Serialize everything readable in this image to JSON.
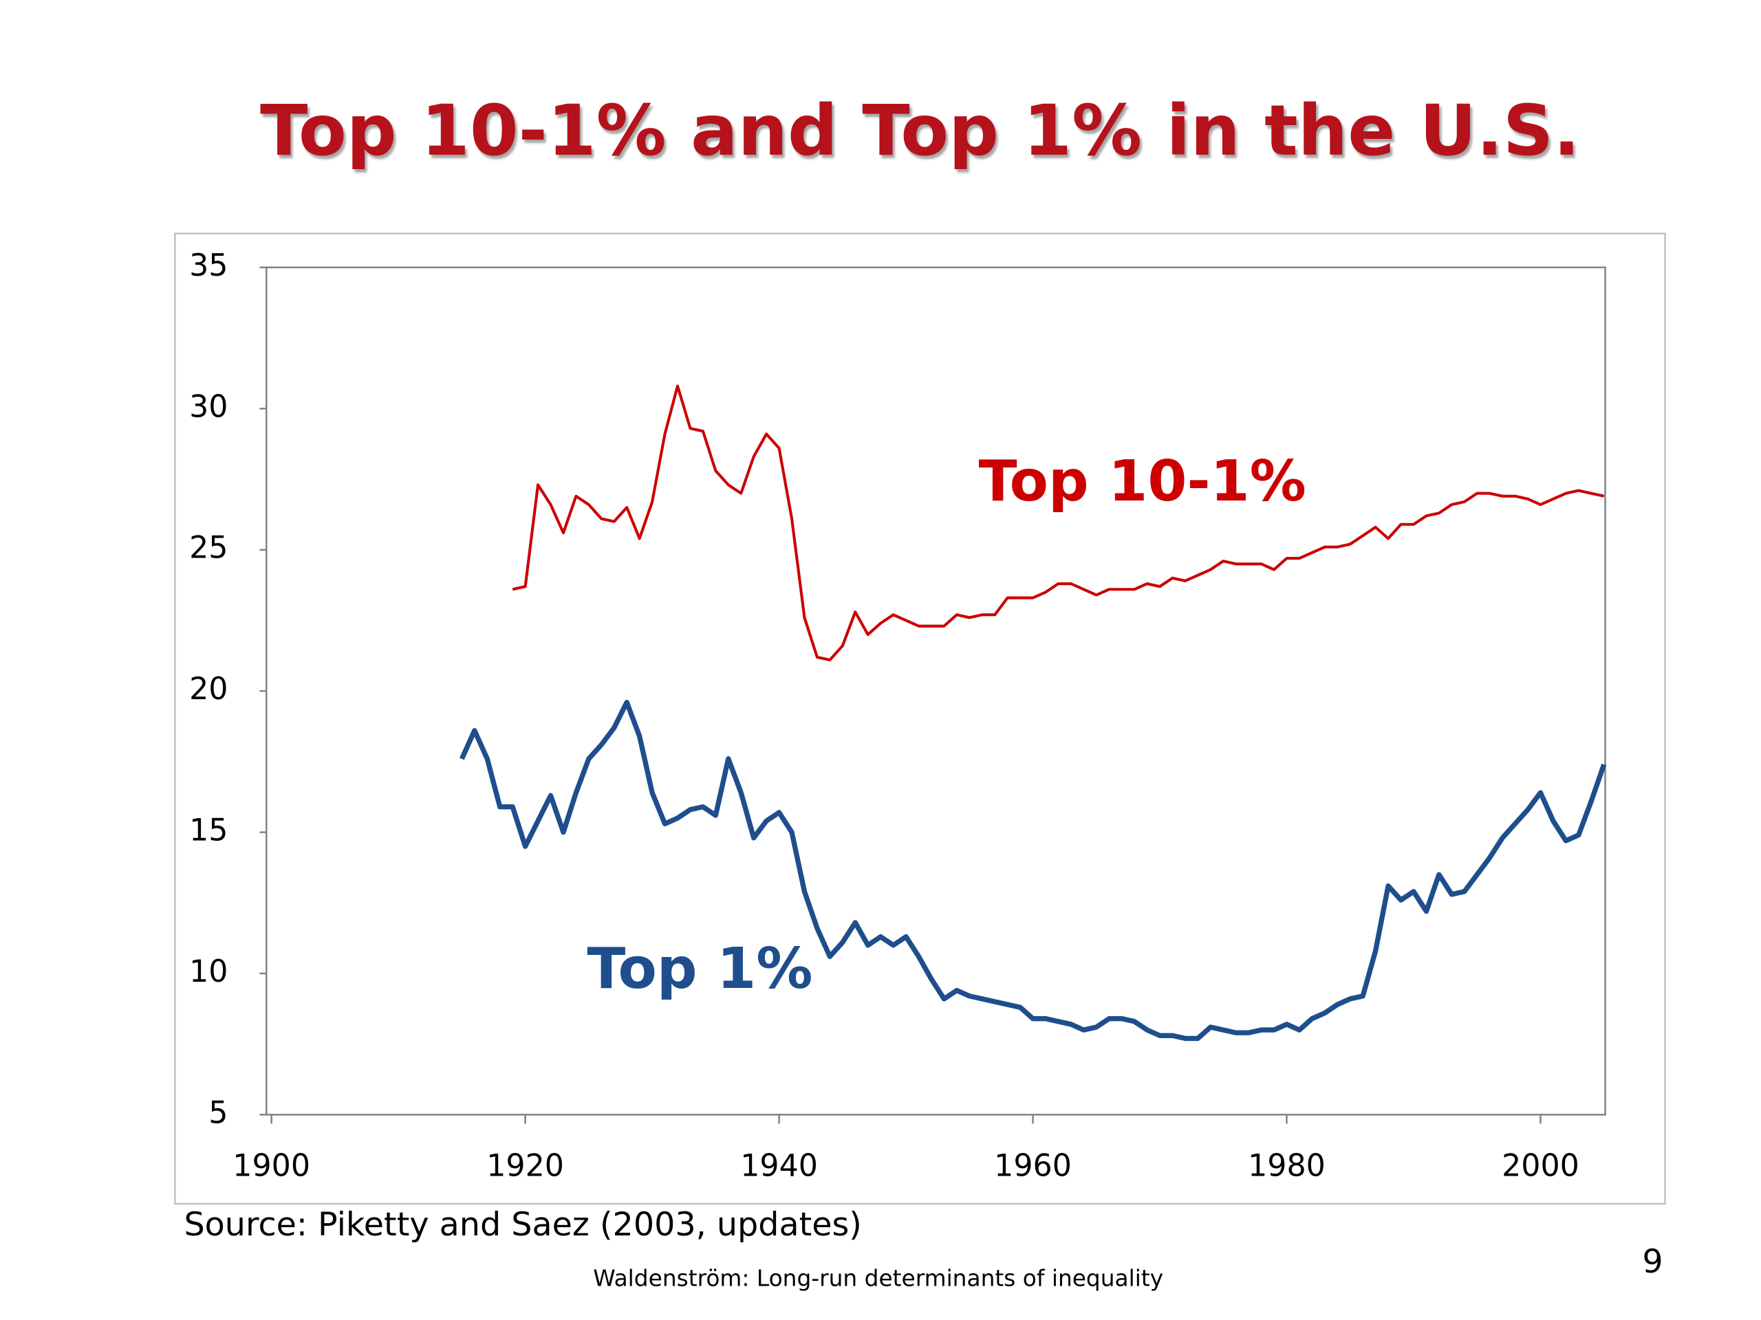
{
  "chart_data": {
    "type": "line",
    "title": "Top 10-1% and Top 1% in the U.S.",
    "source": "Source: Piketty and Saez (2003, updates)",
    "footer": "Waldenström: Long-run determinants of inequality",
    "page_number": "9",
    "x": [
      1915,
      1916,
      1917,
      1918,
      1919,
      1920,
      1921,
      1922,
      1923,
      1924,
      1925,
      1926,
      1927,
      1928,
      1929,
      1930,
      1931,
      1932,
      1933,
      1934,
      1935,
      1936,
      1937,
      1938,
      1939,
      1940,
      1941,
      1942,
      1943,
      1944,
      1945,
      1946,
      1947,
      1948,
      1949,
      1950,
      1951,
      1952,
      1953,
      1954,
      1955,
      1956,
      1957,
      1958,
      1959,
      1960,
      1961,
      1962,
      1963,
      1964,
      1965,
      1966,
      1967,
      1968,
      1969,
      1970,
      1971,
      1972,
      1973,
      1974,
      1975,
      1976,
      1977,
      1978,
      1979,
      1980,
      1981,
      1982,
      1983,
      1984,
      1985,
      1986,
      1987,
      1988,
      1989,
      1990,
      1991,
      1992,
      1993,
      1994,
      1995,
      1996,
      1997,
      1998,
      1999,
      2000,
      2001,
      2002,
      2003,
      2004,
      2005
    ],
    "series": [
      {
        "name": "Top 10-1%",
        "color": "#cc0000",
        "values": [
          null,
          null,
          null,
          null,
          23.6,
          23.7,
          27.3,
          26.6,
          25.6,
          26.9,
          26.6,
          26.1,
          26.0,
          26.5,
          25.4,
          26.7,
          29.1,
          30.8,
          29.3,
          29.2,
          27.8,
          27.3,
          27.0,
          28.3,
          29.1,
          28.6,
          26.1,
          22.6,
          21.2,
          21.1,
          21.6,
          22.8,
          22.0,
          22.4,
          22.7,
          22.5,
          22.3,
          22.3,
          22.3,
          22.7,
          22.6,
          22.7,
          22.7,
          23.3,
          23.3,
          23.3,
          23.5,
          23.8,
          23.8,
          23.6,
          23.4,
          23.6,
          23.6,
          23.6,
          23.8,
          23.7,
          24.0,
          23.9,
          24.1,
          24.3,
          24.6,
          24.5,
          24.5,
          24.5,
          24.3,
          24.7,
          24.7,
          24.9,
          25.1,
          25.1,
          25.2,
          25.5,
          25.8,
          25.4,
          25.9,
          25.9,
          26.2,
          26.3,
          26.6,
          26.7,
          27.0,
          27.0,
          26.9,
          26.9,
          26.8,
          26.6,
          26.8,
          27.0,
          27.1,
          27.0,
          26.9
        ]
      },
      {
        "name": "Top 1%",
        "color": "#1f4e8c",
        "values": [
          17.6,
          18.6,
          17.6,
          15.9,
          15.9,
          14.5,
          15.4,
          16.3,
          15.0,
          16.4,
          17.6,
          18.1,
          18.7,
          19.6,
          18.4,
          16.4,
          15.3,
          15.5,
          15.8,
          15.9,
          15.6,
          17.6,
          16.4,
          14.8,
          15.4,
          15.7,
          15.0,
          12.9,
          11.6,
          10.6,
          11.1,
          11.8,
          11.0,
          11.3,
          11.0,
          11.3,
          10.6,
          9.8,
          9.1,
          9.4,
          9.2,
          9.1,
          9.0,
          8.9,
          8.8,
          8.4,
          8.4,
          8.3,
          8.2,
          8.0,
          8.1,
          8.4,
          8.4,
          8.3,
          8.0,
          7.8,
          7.8,
          7.7,
          7.7,
          8.1,
          8.0,
          7.9,
          7.9,
          8.0,
          8.0,
          8.2,
          8.0,
          8.4,
          8.6,
          8.9,
          9.1,
          9.2,
          10.8,
          13.1,
          12.6,
          12.9,
          12.2,
          13.5,
          12.8,
          12.9,
          13.5,
          14.1,
          14.8,
          15.3,
          15.8,
          16.4,
          15.4,
          14.7,
          14.9,
          16.1,
          17.4
        ]
      }
    ],
    "xlim": [
      1899.6,
      2005.1
    ],
    "xticks": [
      1900,
      1920,
      1940,
      1960,
      1980,
      2000
    ],
    "ylim": [
      5,
      35
    ],
    "yticks": [
      5,
      10,
      15,
      20,
      25,
      30,
      35
    ]
  }
}
